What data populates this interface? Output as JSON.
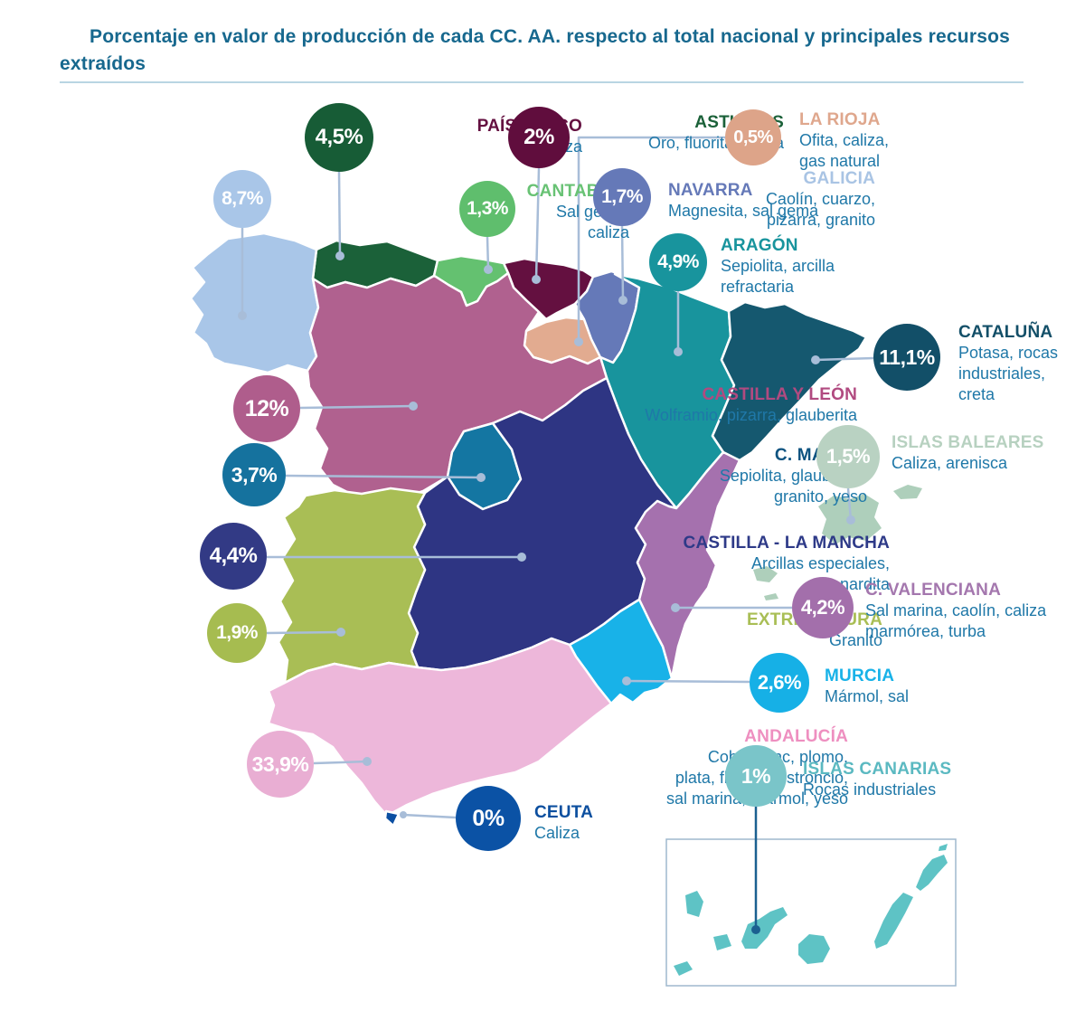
{
  "title": "Porcentaje en valor de producción de cada CC. AA. respecto al total nacional y principales recursos extraídos",
  "styles": {
    "title_color": "#17688e",
    "divider_color": "#b9d5e3",
    "resource_text_color": "#1f78a8",
    "callout_color": "#a8bdd8",
    "canarias_callout_color": "#1b6090",
    "inset_border_color": "#9fb8ce"
  },
  "regions": [
    {
      "id": "asturias",
      "name": "ASTURIAS",
      "resources": [
        "Oro, fluorita, caliza"
      ],
      "value": "4,5%",
      "fill": "#1b6139",
      "bubble": "#175c36",
      "name_color": "#1b6139"
    },
    {
      "id": "paisvasco",
      "name": "PAÍS VASCO",
      "resources": [
        "Caliza"
      ],
      "value": "2%",
      "fill": "#641040",
      "bubble": "#600d3d",
      "name_color": "#641040"
    },
    {
      "id": "larioja",
      "name": "LA RIOJA",
      "resources": [
        "Ofita, caliza,",
        "gas natural"
      ],
      "value": "0,5%",
      "fill": "#e2ab90",
      "bubble": "#dda489",
      "name_color": "#dfa78d"
    },
    {
      "id": "galicia",
      "name": "GALICIA",
      "resources": [
        "Caolín, cuarzo,",
        "pizarra, granito"
      ],
      "value": "8,7%",
      "fill": "#a9c6e8",
      "bubble": "#a9c6e8",
      "name_color": "#a9c4e4"
    },
    {
      "id": "cantabria",
      "name": "CANTABRIA",
      "resources": [
        "Sal gema,",
        "caliza"
      ],
      "value": "1,3%",
      "fill": "#64c170",
      "bubble": "#5fbe6d",
      "name_color": "#68c274"
    },
    {
      "id": "navarra",
      "name": "NAVARRA",
      "resources": [
        "Magnesita, sal gema"
      ],
      "value": "1,7%",
      "fill": "#6579b8",
      "bubble": "#6579b8",
      "name_color": "#6579b8"
    },
    {
      "id": "aragon",
      "name": "ARAGÓN",
      "resources": [
        "Sepiolita, arcilla",
        "refractaria"
      ],
      "value": "4,9%",
      "fill": "#18949d",
      "bubble": "#18949d",
      "name_color": "#18949d"
    },
    {
      "id": "cataluna",
      "name": "CATALUÑA",
      "resources": [
        "Potasa, rocas",
        "industriales,",
        "creta"
      ],
      "value": "11,1%",
      "fill": "#15586f",
      "bubble": "#124f68",
      "name_color": "#134f68"
    },
    {
      "id": "castillaleon",
      "name": "CASTILLA Y LEÓN",
      "resources": [
        "Wolframio, pizarra, glauberita"
      ],
      "value": "12%",
      "fill": "#b0618f",
      "bubble": "#af5d8c",
      "name_color": "#b14a80"
    },
    {
      "id": "madrid",
      "name": "C. MADRID",
      "resources": [
        "Sepiolita, glauberita,",
        "granito, yeso"
      ],
      "value": "3,7%",
      "fill": "#1476a2",
      "bubble": "#15729e",
      "name_color": "#0e5380"
    },
    {
      "id": "baleares",
      "name": "ISLAS BALEARES",
      "resources": [
        "Caliza, arenisca"
      ],
      "value": "1,5%",
      "fill": "#aecfbb",
      "bubble": "#b9d2c2",
      "name_color": "#b7d1c0"
    },
    {
      "id": "clm",
      "name": "CASTILLA - LA MANCHA",
      "resources": [
        "Arcillas especiales,",
        "thenardita"
      ],
      "value": "4,4%",
      "fill": "#2e3583",
      "bubble": "#323a85",
      "name_color": "#2e3a88"
    },
    {
      "id": "extremadura",
      "name": "EXTREMADURA",
      "resources": [
        "Granito"
      ],
      "value": "1,9%",
      "fill": "#a9be55",
      "bubble": "#a6bc50",
      "name_color": "#a9be55"
    },
    {
      "id": "valenciana",
      "name": "C. VALENCIANA",
      "resources": [
        "Sal marina,  caolín, caliza",
        "marmórea, turba"
      ],
      "value": "4,2%",
      "fill": "#a571ae",
      "bubble": "#a36fab",
      "name_color": "#a477ae"
    },
    {
      "id": "murcia",
      "name": "MURCIA",
      "resources": [
        "Mármol, sal"
      ],
      "value": "2,6%",
      "fill": "#18b2e8",
      "bubble": "#16b0e6",
      "name_color": "#18b2e8"
    },
    {
      "id": "andalucia",
      "name": "ANDALUCÍA",
      "resources": [
        "Cobre, zinc, plomo,",
        "plata, fluorita, estroncio,",
        "sal marina, mármol, yeso"
      ],
      "value": "33,9%",
      "fill": "#edb7da",
      "bubble": "#e9aed3",
      "name_color": "#ee8fc0"
    },
    {
      "id": "ceuta",
      "name": "CEUTA",
      "resources": [
        "Caliza"
      ],
      "value": "0%",
      "fill": "#0b4fa2",
      "bubble": "#0b52a5",
      "name_color": "#0c4f9f"
    },
    {
      "id": "canarias",
      "name": "ISLAS CANARIAS",
      "resources": [
        "Rocas industriales"
      ],
      "value": "1%",
      "fill": "#5ec3c5",
      "bubble": "#7ac5c9",
      "name_color": "#5bb9c1"
    }
  ]
}
